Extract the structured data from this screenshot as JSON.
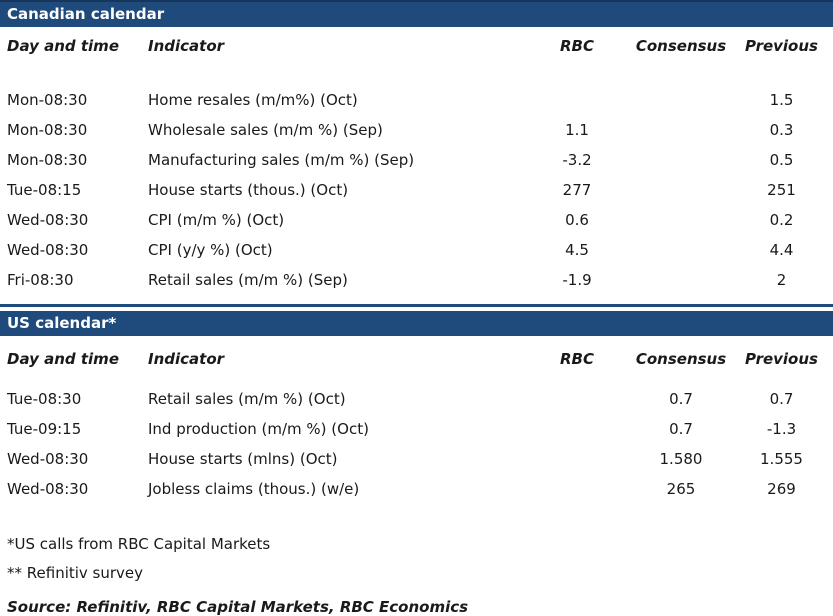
{
  "colors": {
    "header_bar_blue": "#1f4a7c",
    "text": "#1a1a1a",
    "bar_text": "#ffffff"
  },
  "columns": {
    "day": "Day and time",
    "indicator": "Indicator",
    "rbc": "RBC",
    "consensus": "Consensus",
    "previous": "Previous"
  },
  "canadian": {
    "title": "Canadian calendar",
    "rows": [
      {
        "day": "Mon-08:30",
        "indicator": "Home resales (m/m%) (Oct)",
        "rbc": "",
        "consensus": "",
        "previous": "1.5"
      },
      {
        "day": "Mon-08:30",
        "indicator": "Wholesale sales (m/m %) (Sep)",
        "rbc": "1.1",
        "consensus": "",
        "previous": "0.3"
      },
      {
        "day": "Mon-08:30",
        "indicator": "Manufacturing sales (m/m %) (Sep)",
        "rbc": "-3.2",
        "consensus": "",
        "previous": "0.5"
      },
      {
        "day": "Tue-08:15",
        "indicator": "House starts (thous.) (Oct)",
        "rbc": "277",
        "consensus": "",
        "previous": "251"
      },
      {
        "day": "Wed-08:30",
        "indicator": "CPI (m/m %) (Oct)",
        "rbc": "0.6",
        "consensus": "",
        "previous": "0.2"
      },
      {
        "day": "Wed-08:30",
        "indicator": "CPI (y/y %) (Oct)",
        "rbc": "4.5",
        "consensus": "",
        "previous": "4.4"
      },
      {
        "day": "Fri-08:30",
        "indicator": "Retail sales (m/m %) (Sep)",
        "rbc": "-1.9",
        "consensus": "",
        "previous": "2"
      }
    ]
  },
  "us": {
    "title": "US calendar*",
    "rows": [
      {
        "day": "Tue-08:30",
        "indicator": "Retail sales (m/m %) (Oct)",
        "rbc": "",
        "consensus": "0.7",
        "previous": "0.7"
      },
      {
        "day": "Tue-09:15",
        "indicator": "Ind production (m/m %) (Oct)",
        "rbc": "",
        "consensus": "0.7",
        "previous": "-1.3"
      },
      {
        "day": "Wed-08:30",
        "indicator": "House starts (mlns) (Oct)",
        "rbc": "",
        "consensus": "1.580",
        "previous": "1.555"
      },
      {
        "day": "Wed-08:30",
        "indicator": "Jobless claims (thous.) (w/e)",
        "rbc": "",
        "consensus": "265",
        "previous": "269"
      }
    ]
  },
  "footnotes": {
    "us_calls": "*US calls from RBC Capital Markets",
    "refinitiv": "** Refinitiv survey"
  },
  "source": "Source: Refinitiv, RBC Capital Markets, RBC Economics"
}
